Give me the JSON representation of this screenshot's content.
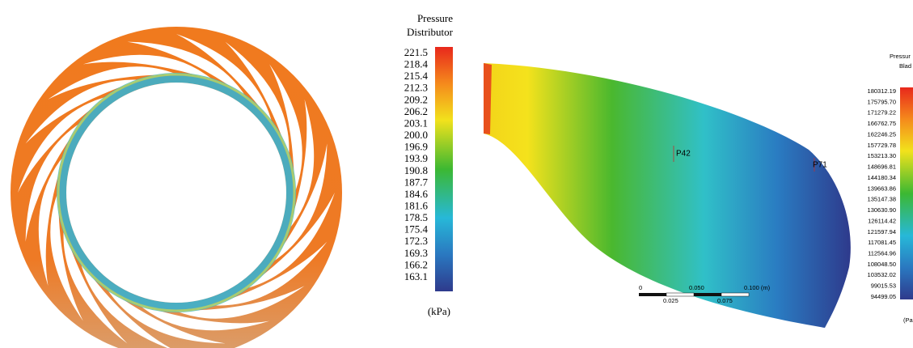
{
  "left_panel": {
    "legend_title": [
      "Pressure",
      "Distributor"
    ],
    "legend_labels": [
      "221.5",
      "218.4",
      "215.4",
      "212.3",
      "209.2",
      "206.2",
      "203.1",
      "200.0",
      "196.9",
      "193.9",
      "190.8",
      "187.7",
      "184.6",
      "181.6",
      "178.5",
      "175.4",
      "172.3",
      "169.3",
      "166.2",
      "163.1"
    ],
    "unit": "(kPa)"
  },
  "right_panel": {
    "legend_title": [
      "Pressur",
      "Blad"
    ],
    "legend_labels": [
      "180312.19",
      "175795.70",
      "171279.22",
      "166762.75",
      "162246.25",
      "157729.78",
      "153213.30",
      "148696.81",
      "144180.34",
      "139663.86",
      "135147.38",
      "130630.90",
      "126114.42",
      "121597.94",
      "117081.45",
      "112564.96",
      "108048.50",
      "103532.02",
      "99015.53",
      "94499.05"
    ],
    "unit": "(Pa",
    "points": [
      "P42",
      "P71"
    ],
    "scale_bar": {
      "top": [
        "0",
        "0.050",
        "0.100 (m)"
      ],
      "bottom": [
        "0.025",
        "0.075"
      ]
    }
  }
}
